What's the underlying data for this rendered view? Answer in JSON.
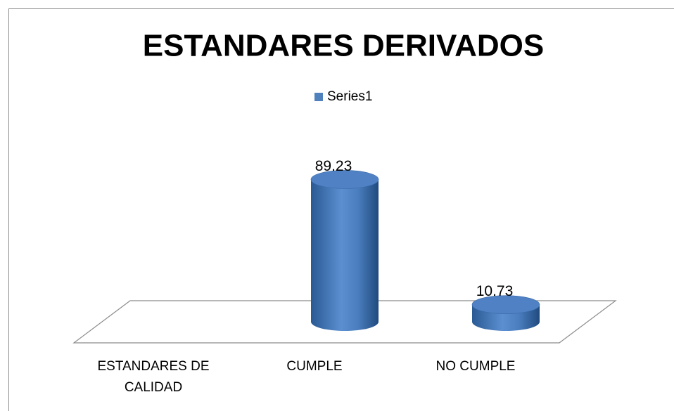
{
  "chart_data": {
    "type": "bar",
    "title": "ESTANDARES DERIVADOS",
    "categories": [
      "ESTANDARES DE CALIDAD",
      "CUMPLE",
      "NO CUMPLE"
    ],
    "series": [
      {
        "name": "Series1",
        "color": "#4f81bd",
        "values": [
          null,
          89.23,
          10.73
        ]
      }
    ],
    "legend": "top"
  }
}
